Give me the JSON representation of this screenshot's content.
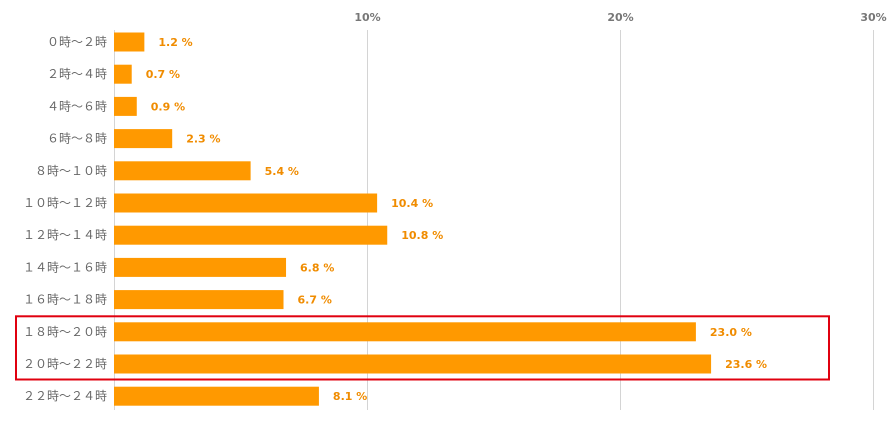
{
  "chart_data": {
    "type": "bar",
    "orientation": "horizontal",
    "categories": [
      "０時～２時",
      "２時～４時",
      "４時～６時",
      "６時～８時",
      "８時～１０時",
      "１０時～１２時",
      "１２時～１４時",
      "１４時～１６時",
      "１６時～１８時",
      "１８時～２０時",
      "２０時～２２時",
      "２２時～２４時"
    ],
    "values": [
      1.2,
      0.7,
      0.9,
      2.3,
      5.4,
      10.4,
      10.8,
      6.8,
      6.7,
      23.0,
      23.6,
      8.1
    ],
    "value_labels": [
      "1.2 %",
      "0.7 %",
      "0.9 %",
      "2.3 %",
      "5.4 %",
      "10.4 %",
      "10.8 %",
      "6.8 %",
      "6.7 %",
      "23.0 %",
      "23.6 %",
      "8.1 %"
    ],
    "xlim": [
      0,
      30
    ],
    "x_ticks": [
      10,
      20,
      30
    ],
    "x_tick_labels": [
      "10%",
      "20%",
      "30%"
    ],
    "x_axis_position": "top",
    "grid": true,
    "title": "",
    "xlabel": "",
    "ylabel": "",
    "colors": {
      "bar": "#FF9900",
      "value_label": "#F08C00",
      "grid": "#d4d4d4",
      "highlight_box": "#E0000F"
    },
    "highlight": {
      "categories": [
        "１８時～２０時",
        "２０時～２２時"
      ]
    }
  }
}
